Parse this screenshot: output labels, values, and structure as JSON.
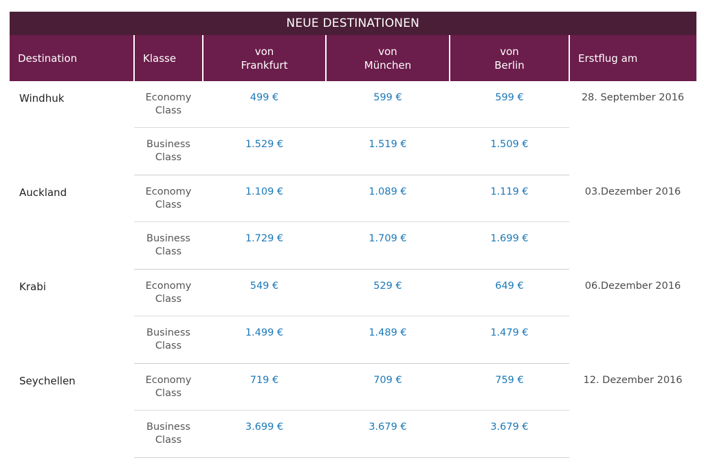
{
  "title": "NEUE DESTINATIONEN",
  "headers": {
    "destination": "Destination",
    "klasse": "Klasse",
    "frankfurt_von": "von",
    "frankfurt": "Frankfurt",
    "muenchen_von": "von",
    "muenchen": "München",
    "berlin_von": "von",
    "berlin": "Berlin",
    "erstflug": "Erstflug am"
  },
  "colors": {
    "title_bg": "#4a1e37",
    "header_bg": "#6b1d4b",
    "price": "#1a78b8"
  },
  "rows": [
    {
      "destination": "Windhuk",
      "date": "28. September 2016",
      "economy": {
        "l1": "Economy",
        "l2": "Class",
        "frankfurt": "499 €",
        "muenchen": "599 €",
        "berlin": "599 €"
      },
      "business": {
        "l1": "Business",
        "l2": "Class",
        "frankfurt": "1.529 €",
        "muenchen": "1.519 €",
        "berlin": "1.509 €"
      }
    },
    {
      "destination": "Auckland",
      "date": "03.Dezember 2016",
      "economy": {
        "l1": "Economy",
        "l2": "Class",
        "frankfurt": "1.109 €",
        "muenchen": "1.089 €",
        "berlin": "1.119 €"
      },
      "business": {
        "l1": "Business",
        "l2": "Class",
        "frankfurt": "1.729 €",
        "muenchen": "1.709 €",
        "berlin": "1.699 €"
      }
    },
    {
      "destination": "Krabi",
      "date": "06.Dezember 2016",
      "economy": {
        "l1": "Economy",
        "l2": "Class",
        "frankfurt": "549 €",
        "muenchen": "529 €",
        "berlin": "649 €"
      },
      "business": {
        "l1": "Business",
        "l2": "Class",
        "frankfurt": "1.499 €",
        "muenchen": "1.489 €",
        "berlin": "1.479 €"
      }
    },
    {
      "destination": "Seychellen",
      "date": "12. Dezember 2016",
      "economy": {
        "l1": "Economy",
        "l2": "Class",
        "frankfurt": "719 €",
        "muenchen": "709 €",
        "berlin": "759 €"
      },
      "business": {
        "l1": "Business",
        "l2": "Class",
        "frankfurt": "3.699 €",
        "muenchen": "3.679 €",
        "berlin": "3.679 €"
      }
    }
  ]
}
